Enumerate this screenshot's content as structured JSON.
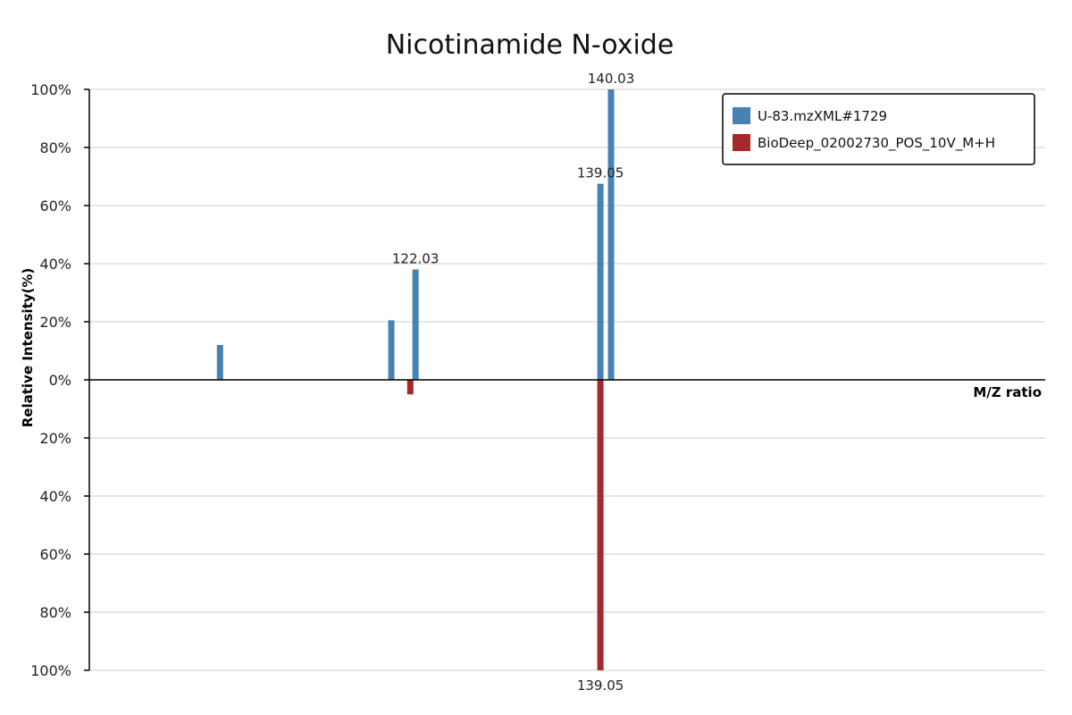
{
  "chart_data": {
    "type": "bar",
    "title": "Nicotinamide N-oxide",
    "xlabel": "M/Z ratio",
    "ylabel": "Relative Intensity(%)",
    "ylim": [
      -100,
      100
    ],
    "y_tick_labels": [
      "100%",
      "80%",
      "60%",
      "40%",
      "20%",
      "0%",
      "20%",
      "40%",
      "60%",
      "80%",
      "100%"
    ],
    "y_tick_values": [
      100,
      80,
      60,
      40,
      20,
      0,
      -20,
      -40,
      -60,
      -80,
      -100
    ],
    "xlim": [
      92,
      180
    ],
    "grid": true,
    "legend": "top-right",
    "series": [
      {
        "name": "U-83.mzXML#1729",
        "color": "#4682b4",
        "direction": "up",
        "peaks": [
          {
            "mz": 104.03,
            "intensity": 12
          },
          {
            "mz": 119.8,
            "intensity": 20.5
          },
          {
            "mz": 122.03,
            "intensity": 38,
            "label": "122.03"
          },
          {
            "mz": 139.05,
            "intensity": 67.5,
            "label": "139.05"
          },
          {
            "mz": 140.03,
            "intensity": 100,
            "label": "140.03"
          }
        ]
      },
      {
        "name": "BioDeep_02002730_POS_10V_M+H",
        "color": "#a52a2a",
        "direction": "down",
        "peaks": [
          {
            "mz": 121.55,
            "intensity": 5
          },
          {
            "mz": 139.05,
            "intensity": 100,
            "label": "139.05"
          }
        ]
      }
    ]
  }
}
